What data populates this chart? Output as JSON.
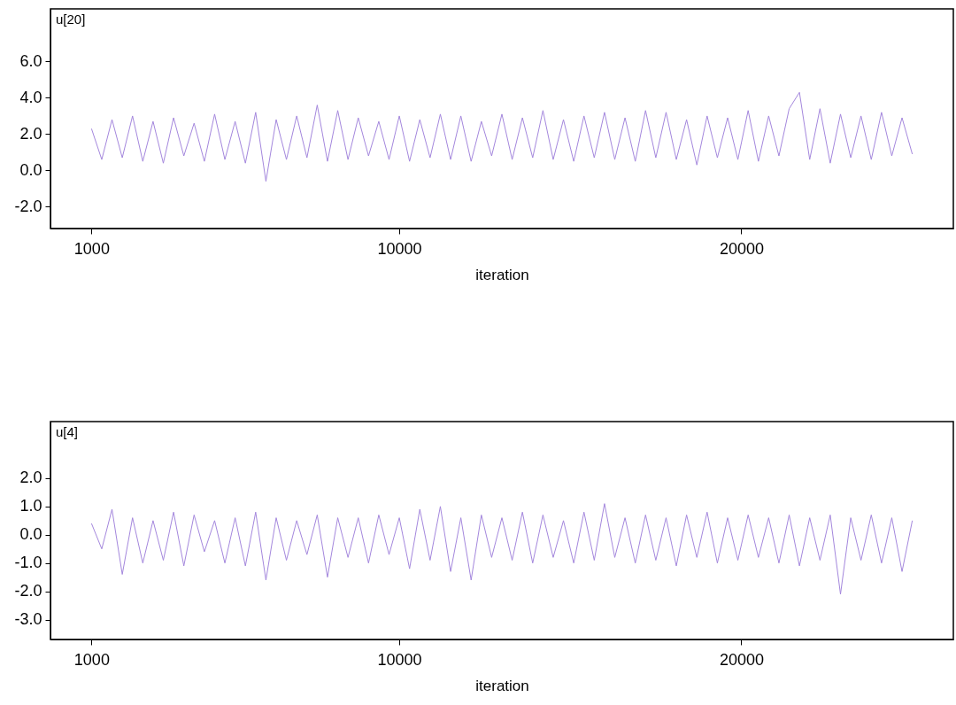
{
  "chart_data": [
    {
      "type": "line",
      "title": "u[20]",
      "xlabel": "iteration",
      "xlim": [
        -200,
        26200
      ],
      "ylim": [
        -3.2,
        8.9
      ],
      "xticks": [
        1000,
        10000,
        20000
      ],
      "yticks": [
        {
          "value": -2,
          "label": "-2.0"
        },
        {
          "value": 0,
          "label": "0.0"
        },
        {
          "value": 2,
          "label": "2.0"
        },
        {
          "value": 4,
          "label": "4.0"
        },
        {
          "value": 6,
          "label": "6.0"
        }
      ],
      "x": [
        1000,
        1300,
        1600,
        1900,
        2200,
        2500,
        2800,
        3100,
        3400,
        3700,
        4000,
        4300,
        4600,
        4900,
        5200,
        5500,
        5800,
        6100,
        6400,
        6700,
        7000,
        7300,
        7600,
        7900,
        8200,
        8500,
        8800,
        9100,
        9400,
        9700,
        10000,
        10300,
        10600,
        10900,
        11200,
        11500,
        11800,
        12100,
        12400,
        12700,
        13000,
        13300,
        13600,
        13900,
        14200,
        14500,
        14800,
        15100,
        15400,
        15700,
        16000,
        16300,
        16600,
        16900,
        17200,
        17500,
        17800,
        18100,
        18400,
        18700,
        19000,
        19300,
        19600,
        19900,
        20200,
        20500,
        20800,
        21100,
        21400,
        21700,
        22000,
        22300,
        22600,
        22900,
        23200,
        23500,
        23800,
        24100,
        24400,
        24700,
        25000
      ],
      "series": [
        {
          "color": "#a487dd",
          "values": [
            2.3,
            0.6,
            2.8,
            0.7,
            3.0,
            0.5,
            2.7,
            0.4,
            2.9,
            0.8,
            2.6,
            0.5,
            3.1,
            0.6,
            2.7,
            0.4,
            3.2,
            -0.6,
            2.8,
            0.6,
            3.0,
            0.7,
            3.6,
            0.5,
            3.3,
            0.6,
            2.9,
            0.8,
            2.7,
            0.6,
            3.0,
            0.5,
            2.8,
            0.7,
            3.1,
            0.6,
            3.0,
            0.5,
            2.7,
            0.8,
            3.1,
            0.6,
            2.9,
            0.7,
            3.3,
            0.6,
            2.8,
            0.5,
            3.0,
            0.7,
            3.2,
            0.6,
            2.9,
            0.5,
            3.3,
            0.7,
            3.2,
            0.6,
            2.8,
            0.3,
            3.0,
            0.7,
            2.9,
            0.6,
            3.3,
            0.5,
            3.0,
            0.8,
            3.4,
            4.3,
            0.6,
            3.4,
            0.4,
            3.1,
            0.7,
            3.0,
            0.6,
            3.2,
            0.8,
            2.9,
            0.9
          ]
        }
      ]
    },
    {
      "type": "line",
      "title": "u[4]",
      "xlabel": "iteration",
      "xlim": [
        -200,
        26200
      ],
      "ylim": [
        -3.7,
        4.0
      ],
      "xticks": [
        1000,
        10000,
        20000
      ],
      "yticks": [
        {
          "value": -3,
          "label": "-3.0"
        },
        {
          "value": -2,
          "label": "-2.0"
        },
        {
          "value": -1,
          "label": "-1.0"
        },
        {
          "value": 0,
          "label": "0.0"
        },
        {
          "value": 1,
          "label": "1.0"
        },
        {
          "value": 2,
          "label": "2.0"
        }
      ],
      "x": [
        1000,
        1300,
        1600,
        1900,
        2200,
        2500,
        2800,
        3100,
        3400,
        3700,
        4000,
        4300,
        4600,
        4900,
        5200,
        5500,
        5800,
        6100,
        6400,
        6700,
        7000,
        7300,
        7600,
        7900,
        8200,
        8500,
        8800,
        9100,
        9400,
        9700,
        10000,
        10300,
        10600,
        10900,
        11200,
        11500,
        11800,
        12100,
        12400,
        12700,
        13000,
        13300,
        13600,
        13900,
        14200,
        14500,
        14800,
        15100,
        15400,
        15700,
        16000,
        16300,
        16600,
        16900,
        17200,
        17500,
        17800,
        18100,
        18400,
        18700,
        19000,
        19300,
        19600,
        19900,
        20200,
        20500,
        20800,
        21100,
        21400,
        21700,
        22000,
        22300,
        22600,
        22900,
        23200,
        23500,
        23800,
        24100,
        24400,
        24700,
        25000
      ],
      "series": [
        {
          "color": "#a487dd",
          "values": [
            0.4,
            -0.5,
            0.9,
            -1.4,
            0.6,
            -1.0,
            0.5,
            -0.9,
            0.8,
            -1.1,
            0.7,
            -0.6,
            0.5,
            -1.0,
            0.6,
            -1.1,
            0.8,
            -1.6,
            0.6,
            -0.9,
            0.5,
            -0.7,
            0.7,
            -1.5,
            0.6,
            -0.8,
            0.6,
            -1.0,
            0.7,
            -0.7,
            0.6,
            -1.2,
            0.9,
            -0.9,
            1.0,
            -1.3,
            0.6,
            -1.6,
            0.7,
            -0.8,
            0.6,
            -0.9,
            0.8,
            -1.0,
            0.7,
            -0.8,
            0.5,
            -1.0,
            0.8,
            -0.9,
            1.1,
            -0.8,
            0.6,
            -1.0,
            0.7,
            -0.9,
            0.6,
            -1.1,
            0.7,
            -0.8,
            0.8,
            -1.0,
            0.6,
            -0.9,
            0.7,
            -0.8,
            0.6,
            -1.0,
            0.7,
            -1.1,
            0.6,
            -0.9,
            0.7,
            -2.1,
            0.6,
            -0.9,
            0.7,
            -1.0,
            0.6,
            -1.3,
            0.5
          ]
        }
      ]
    }
  ]
}
